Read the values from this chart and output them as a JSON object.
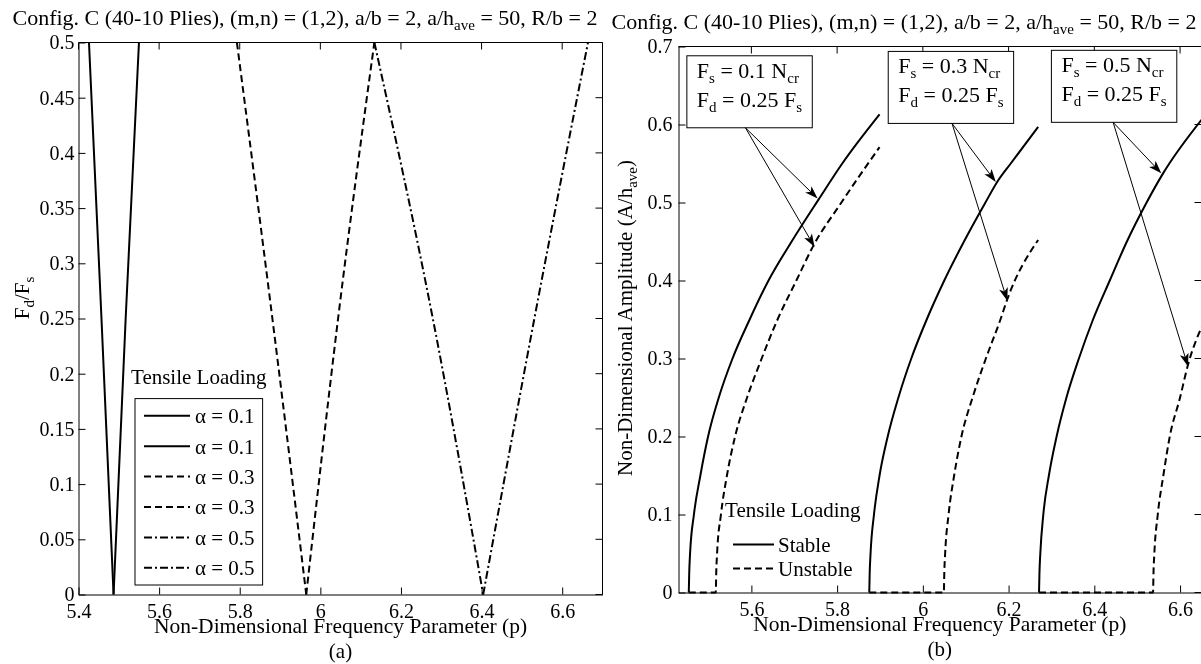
{
  "chart_data": [
    {
      "type": "line",
      "title": "Config. C (40-10 Plies), (m,n) = (1,2), a/b = 2, a/h$_{ave}$ = 50, R/b = 2",
      "xlabel": "Non-Dimensional Frequency Parameter (p)",
      "ylabel": "F$_{d}$/F$_{s}$",
      "legend_title": "Tensile Loading",
      "legend": "bottom left",
      "xlim": [
        5.4,
        6.7
      ],
      "ylim": [
        0,
        0.5
      ],
      "xticks": [
        5.4,
        5.6,
        5.8,
        6,
        6.2,
        6.4,
        6.6
      ],
      "yticks": [
        0,
        0.05,
        0.1,
        0.15,
        0.2,
        0.25,
        0.3,
        0.35,
        0.4,
        0.45,
        0.5
      ],
      "series": [
        {
          "name": "α = 0.1",
          "color": "#000000",
          "line_style": "solid",
          "x": [
            5.426,
            5.457,
            5.487
          ],
          "values": [
            0.5,
            0.25,
            0
          ]
        },
        {
          "name": "α = 0.1",
          "color": "#000000",
          "line_style": "solid",
          "x": [
            5.487,
            5.517,
            5.55
          ],
          "values": [
            0,
            0.25,
            0.5
          ]
        },
        {
          "name": "α = 0.3",
          "color": "#000000",
          "line_style": "dashed",
          "x": [
            5.793,
            5.881,
            5.965
          ],
          "values": [
            0.5,
            0.25,
            0
          ]
        },
        {
          "name": "α = 0.3",
          "color": "#000000",
          "line_style": "dashed",
          "x": [
            5.965,
            6.044,
            6.134
          ],
          "values": [
            0,
            0.25,
            0.5
          ]
        },
        {
          "name": "α = 0.5",
          "color": "#000000",
          "line_style": "dashdot",
          "x": [
            6.134,
            6.279,
            6.404
          ],
          "values": [
            0.5,
            0.25,
            0
          ]
        },
        {
          "name": "α = 0.5",
          "color": "#000000",
          "line_style": "dashdot",
          "x": [
            6.404,
            6.531,
            6.664
          ],
          "values": [
            0,
            0.25,
            0.5
          ]
        }
      ],
      "annotations": [
        "(a)"
      ]
    },
    {
      "type": "line",
      "title": "Config. C (40-10 Plies), (m,n) = (1,2), a/b = 2, a/h$_{ave}$ = 50, R/b = 2",
      "xlabel": "Non-Dimensional Frequency Parameter (p)",
      "ylabel": "Non-Dimensional Amplitude (A/h$_{ave}$)",
      "legend_title": "Tensile Loading",
      "legend": "bottom left",
      "xlim": [
        5.43,
        6.65
      ],
      "ylim": [
        0,
        0.7
      ],
      "xticks": [
        5.6,
        5.8,
        6,
        6.2,
        6.4,
        6.6
      ],
      "yticks": [
        0,
        0.1,
        0.2,
        0.3,
        0.4,
        0.5,
        0.6,
        0.7
      ],
      "series": [
        {
          "name": "Stable",
          "color": "#000000",
          "line_style": "solid",
          "x": [
            5.454,
            5.455,
            5.457,
            5.466,
            5.481,
            5.499,
            5.524,
            5.556,
            5.596,
            5.64,
            5.694,
            5.757,
            5.812,
            5.899,
            null,
            5.875,
            5.876,
            5.878,
            5.886,
            5.899,
            5.918,
            5.943,
            5.973,
            6.009,
            6.05,
            6.096,
            6.146,
            6.173,
            6.205,
            6.269,
            null,
            6.271,
            6.272,
            6.274,
            6.281,
            6.294,
            6.312,
            6.335,
            6.364,
            6.397,
            6.436,
            6.476,
            6.522,
            6.56,
            6.65
          ],
          "values": [
            0,
            0.025,
            0.05,
            0.1,
            0.15,
            0.2,
            0.25,
            0.3,
            0.35,
            0.4,
            0.45,
            0.504,
            0.55,
            0.613,
            null,
            0,
            0.025,
            0.05,
            0.1,
            0.15,
            0.2,
            0.25,
            0.3,
            0.35,
            0.4,
            0.45,
            0.5,
            0.526,
            0.55,
            0.597,
            null,
            0,
            0.025,
            0.05,
            0.1,
            0.15,
            0.2,
            0.25,
            0.3,
            0.35,
            0.4,
            0.45,
            0.5,
            0.537,
            0.606
          ]
        },
        {
          "name": "Unstable",
          "color": "#000000",
          "line_style": "dashed",
          "x": [
            5.454,
            5.517,
            5.518,
            5.52,
            5.529,
            5.543,
            5.562,
            5.59,
            5.624,
            5.661,
            5.705,
            5.745,
            5.81,
            5.899,
            null,
            5.875,
            6.049,
            6.05,
            6.052,
            6.06,
            6.073,
            6.09,
            6.116,
            6.147,
            6.181,
            6.197,
            6.269,
            null,
            6.271,
            6.537,
            6.538,
            6.54,
            6.548,
            6.561,
            6.576,
            6.6,
            6.618,
            6.65
          ],
          "values": [
            0,
            0,
            0.025,
            0.05,
            0.1,
            0.15,
            0.2,
            0.25,
            0.3,
            0.35,
            0.4,
            0.445,
            0.5,
            0.571,
            null,
            0,
            0,
            0.025,
            0.05,
            0.1,
            0.15,
            0.2,
            0.25,
            0.3,
            0.35,
            0.376,
            0.452,
            null,
            0,
            0,
            0.025,
            0.05,
            0.1,
            0.15,
            0.2,
            0.25,
            0.291,
            0.34
          ]
        }
      ],
      "annotations": [
        "F$_{s}$ = 0.1 N$_{cr}$",
        "F$_{d}$ = 0.25 F$_{s}$",
        "F$_{s}$ = 0.3 N$_{cr}$",
        "F$_{d}$ = 0.25 F$_{s}$",
        "F$_{s}$ = 0.5 N$_{cr}$",
        "F$_{d}$ = 0.25 F$_{s}$",
        "(b)"
      ]
    }
  ]
}
